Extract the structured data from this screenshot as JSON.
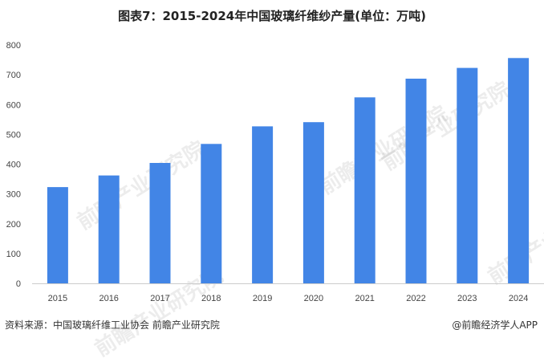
{
  "watermark_text": "前瞻产业研究院",
  "footer": {
    "source": "资料来源：中国玻璃纤维工业协会 前瞻产业研究院",
    "brand": "@前瞻经济学人APP"
  },
  "chart_data": {
    "type": "bar",
    "title": "图表7：2015-2024年中国玻璃纤维纱产量(单位：万吨)",
    "xlabel": "",
    "ylabel": "",
    "categories": [
      "2015",
      "2016",
      "2017",
      "2018",
      "2019",
      "2020",
      "2021",
      "2022",
      "2023",
      "2024"
    ],
    "values": [
      323,
      362,
      404,
      468,
      527,
      541,
      624,
      687,
      723,
      756
    ],
    "ylim": [
      0,
      800
    ],
    "yticks": [
      0,
      100,
      200,
      300,
      400,
      500,
      600,
      700,
      800
    ],
    "bar_color": "#4285e6",
    "grid": false,
    "legend": "none"
  }
}
